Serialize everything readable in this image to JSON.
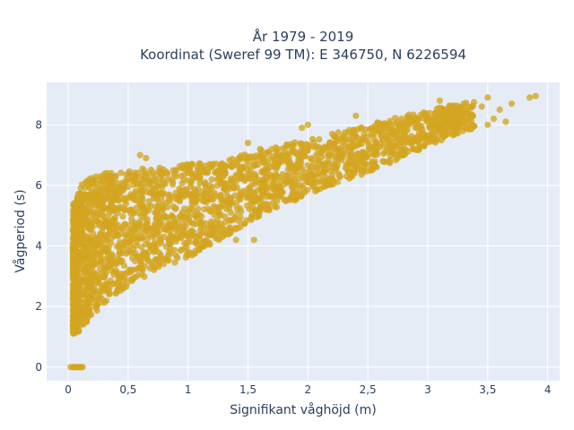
{
  "chart_data": {
    "type": "scatter",
    "title": "År 1979 - 2019",
    "subtitle": "Koordinat (Sweref 99 TM): E 346750, N 6226594",
    "xlabel": "Signifikant våghöjd (m)",
    "ylabel": "Vågperiod (s)",
    "xlim": [
      -0.18,
      4.1
    ],
    "ylim": [
      -0.45,
      9.4
    ],
    "x_ticks": [
      0,
      0.5,
      1,
      1.5,
      2,
      2.5,
      3,
      3.5,
      4
    ],
    "x_tick_labels": [
      "0",
      "0,5",
      "1",
      "1,5",
      "2",
      "2,5",
      "3",
      "3,5",
      "4"
    ],
    "y_ticks": [
      0,
      2,
      4,
      6,
      8
    ],
    "y_tick_labels": [
      "0",
      "2",
      "4",
      "6",
      "8"
    ],
    "grid": true,
    "marker_color": "#D4A520",
    "plot_bg": "#E5ECF6",
    "series": [
      {
        "description": "dense cloud of hourly observations (period vs significant wave height)",
        "lower_envelope": [
          [
            0.05,
            1.1
          ],
          [
            0.1,
            1.2
          ],
          [
            0.2,
            1.7
          ],
          [
            0.35,
            2.3
          ],
          [
            0.6,
            2.9
          ],
          [
            0.85,
            3.4
          ],
          [
            1.0,
            3.6
          ],
          [
            1.3,
            4.3
          ],
          [
            1.6,
            5.0
          ],
          [
            2.0,
            5.7
          ],
          [
            2.5,
            6.4
          ],
          [
            3.0,
            7.3
          ],
          [
            3.3,
            7.8
          ]
        ],
        "upper_envelope": [
          [
            0.05,
            5.4
          ],
          [
            0.1,
            6.0
          ],
          [
            0.2,
            6.3
          ],
          [
            0.4,
            6.5
          ],
          [
            0.8,
            6.6
          ],
          [
            1.0,
            6.7
          ],
          [
            1.3,
            6.8
          ],
          [
            1.6,
            7.2
          ],
          [
            2.0,
            7.5
          ],
          [
            2.5,
            8.0
          ],
          [
            3.0,
            8.5
          ],
          [
            3.5,
            8.9
          ]
        ],
        "outliers": [
          [
            0.6,
            7.0
          ],
          [
            1.5,
            7.4
          ],
          [
            2.0,
            8.0
          ],
          [
            2.4,
            8.3
          ],
          [
            2.7,
            7.8
          ],
          [
            3.1,
            8.8
          ],
          [
            3.3,
            8.7
          ],
          [
            3.35,
            8.3
          ],
          [
            3.45,
            8.6
          ],
          [
            3.5,
            8.9
          ],
          [
            3.55,
            8.2
          ],
          [
            3.6,
            8.5
          ],
          [
            3.65,
            8.1
          ],
          [
            3.7,
            8.7
          ],
          [
            3.85,
            8.9
          ],
          [
            3.9,
            8.95
          ],
          [
            3.5,
            8.0
          ],
          [
            0.85,
            3.9
          ],
          [
            1.1,
            4.2
          ],
          [
            1.4,
            4.2
          ],
          [
            1.55,
            4.2
          ],
          [
            0.65,
            6.9
          ],
          [
            1.95,
            7.9
          ]
        ],
        "zero_period_points": [
          [
            0.02,
            0
          ],
          [
            0.04,
            0
          ],
          [
            0.05,
            0
          ],
          [
            0.06,
            0
          ],
          [
            0.07,
            0
          ],
          [
            0.08,
            0
          ],
          [
            0.09,
            0
          ],
          [
            0.1,
            0
          ],
          [
            0.11,
            0
          ],
          [
            0.12,
            0
          ]
        ]
      }
    ]
  }
}
